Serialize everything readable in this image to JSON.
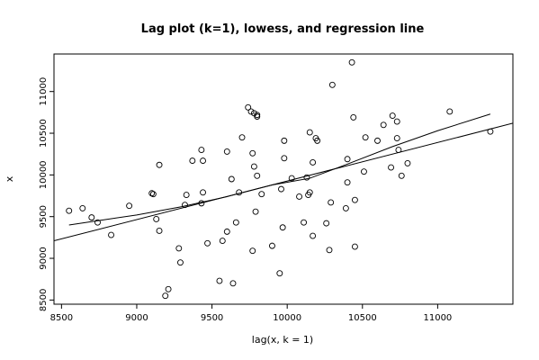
{
  "chart_data": {
    "type": "scatter",
    "title": "Lag plot (k=1), lowess, and regression line",
    "xlabel": "lag(x, k = 1)",
    "ylabel": "x",
    "xlim": [
      8450,
      11500
    ],
    "ylim": [
      8450,
      11450
    ],
    "x_ticks": [
      8500,
      9000,
      9500,
      10000,
      10500,
      11000
    ],
    "y_ticks": [
      8500,
      9000,
      9500,
      10000,
      10500,
      11000
    ],
    "points": [
      [
        8550,
        9570
      ],
      [
        8640,
        9600
      ],
      [
        8700,
        9490
      ],
      [
        8740,
        9430
      ],
      [
        8830,
        9280
      ],
      [
        8950,
        9630
      ],
      [
        9100,
        9780
      ],
      [
        9110,
        9770
      ],
      [
        9130,
        9470
      ],
      [
        9150,
        10120
      ],
      [
        9150,
        9330
      ],
      [
        9190,
        8550
      ],
      [
        9210,
        8630
      ],
      [
        9280,
        9120
      ],
      [
        9290,
        8950
      ],
      [
        9320,
        9640
      ],
      [
        9330,
        9760
      ],
      [
        9370,
        10170
      ],
      [
        9430,
        10300
      ],
      [
        9440,
        10170
      ],
      [
        9430,
        9660
      ],
      [
        9440,
        9790
      ],
      [
        9470,
        9180
      ],
      [
        9550,
        8730
      ],
      [
        9570,
        9210
      ],
      [
        9600,
        10280
      ],
      [
        9600,
        9320
      ],
      [
        9630,
        9950
      ],
      [
        9640,
        8700
      ],
      [
        9660,
        9430
      ],
      [
        9680,
        9790
      ],
      [
        9700,
        10450
      ],
      [
        9740,
        10810
      ],
      [
        9760,
        10760
      ],
      [
        9780,
        10740
      ],
      [
        9800,
        10720
      ],
      [
        9800,
        10700
      ],
      [
        9770,
        10260
      ],
      [
        9780,
        10100
      ],
      [
        9770,
        9090
      ],
      [
        9790,
        9560
      ],
      [
        9800,
        9990
      ],
      [
        9830,
        9770
      ],
      [
        9900,
        9150
      ],
      [
        9950,
        8820
      ],
      [
        9960,
        9830
      ],
      [
        9970,
        9370
      ],
      [
        9980,
        10410
      ],
      [
        9980,
        10200
      ],
      [
        10030,
        9960
      ],
      [
        10080,
        9740
      ],
      [
        10110,
        9430
      ],
      [
        10130,
        9970
      ],
      [
        10140,
        9760
      ],
      [
        10150,
        9790
      ],
      [
        10150,
        10510
      ],
      [
        10170,
        10150
      ],
      [
        10170,
        9270
      ],
      [
        10190,
        10440
      ],
      [
        10200,
        10410
      ],
      [
        10260,
        9420
      ],
      [
        10280,
        9100
      ],
      [
        10290,
        9670
      ],
      [
        10300,
        11080
      ],
      [
        10390,
        9600
      ],
      [
        10400,
        9910
      ],
      [
        10400,
        10190
      ],
      [
        10430,
        11350
      ],
      [
        10440,
        10690
      ],
      [
        10450,
        9140
      ],
      [
        10450,
        9700
      ],
      [
        10510,
        10040
      ],
      [
        10520,
        10450
      ],
      [
        10600,
        10410
      ],
      [
        10640,
        10600
      ],
      [
        10690,
        10090
      ],
      [
        10700,
        10710
      ],
      [
        10730,
        10440
      ],
      [
        10730,
        10640
      ],
      [
        10740,
        10300
      ],
      [
        10760,
        9990
      ],
      [
        10800,
        10140
      ],
      [
        11080,
        10760
      ],
      [
        11350,
        10520
      ]
    ],
    "regression_line": {
      "x": [
        8450,
        11500
      ],
      "y": [
        9210,
        10620
      ]
    },
    "lowess_line": {
      "x": [
        8550,
        8700,
        9000,
        9300,
        9600,
        9900,
        10150,
        10400,
        10700,
        11000,
        11350
      ],
      "y": [
        9400,
        9440,
        9520,
        9620,
        9740,
        9880,
        9960,
        10130,
        10340,
        10530,
        10730
      ]
    }
  }
}
